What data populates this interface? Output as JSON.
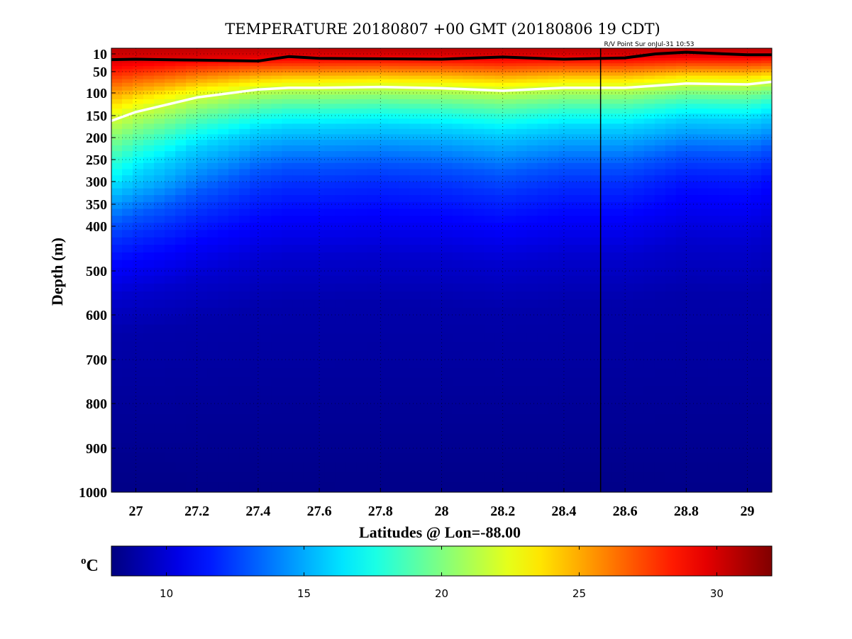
{
  "chart_data": {
    "type": "heatmap",
    "title": "TEMPERATURE 20180807 +00 GMT (20180806 19 CDT)",
    "annotation": "R/V Point Sur onJul-31 10:53",
    "xlabel": "Latitudes @ Lon=-88.00",
    "ylabel": "Depth (m)",
    "xlim": [
      26.92,
      29.08
    ],
    "ylim": [
      0,
      1000
    ],
    "y_scale": "piecewise (upper 0-400 m expanded)",
    "grid": "dotted",
    "x_ticks": [
      27,
      27.2,
      27.4,
      27.6,
      27.8,
      28,
      28.2,
      28.4,
      28.6,
      28.8,
      29
    ],
    "x_tick_labels": [
      "27",
      "27.2",
      "27.4",
      "27.6",
      "27.8",
      "28",
      "28.2",
      "28.4",
      "28.6",
      "28.8",
      "29"
    ],
    "y_ticks": [
      10,
      50,
      100,
      150,
      200,
      250,
      300,
      350,
      400,
      500,
      600,
      700,
      800,
      900,
      1000
    ],
    "y_tick_labels": [
      "10",
      "50",
      "100",
      "150",
      "200",
      "250",
      "300",
      "350",
      "400",
      "500",
      "600",
      "700",
      "800",
      "900",
      "1000"
    ],
    "colorbar": {
      "label": "oC",
      "label_main": "o",
      "label_unit": "C",
      "range": [
        8,
        32
      ],
      "ticks": [
        10,
        15,
        20,
        25,
        30
      ],
      "tick_labels": [
        "10",
        "15",
        "20",
        "25",
        "30"
      ],
      "colormap": "jet"
    },
    "isotherms": [
      {
        "temperature_c": 28,
        "color": "#000000",
        "latitudes": [
          26.92,
          27.0,
          27.2,
          27.4,
          27.5,
          27.6,
          27.8,
          28.0,
          28.2,
          28.4,
          28.6,
          28.7,
          28.8,
          29.0,
          29.08
        ],
        "depths_m": [
          23,
          22,
          24,
          26,
          16,
          20,
          21,
          22,
          17,
          22,
          19,
          10,
          7,
          12,
          12
        ]
      },
      {
        "temperature_c": 22,
        "color": "#ffffff",
        "latitudes": [
          26.92,
          27.0,
          27.2,
          27.4,
          27.5,
          27.6,
          27.8,
          28.0,
          28.2,
          28.4,
          28.6,
          28.8,
          29.0,
          29.08
        ],
        "depths_m": [
          162,
          142,
          110,
          92,
          88,
          88,
          86,
          89,
          95,
          88,
          88,
          78,
          80,
          74
        ]
      }
    ],
    "section_marker": {
      "latitude": 28.52,
      "color": "#000000"
    },
    "temperature_profile": {
      "depths_m": [
        0,
        20,
        40,
        60,
        80,
        100,
        130,
        160,
        200,
        250,
        300,
        350,
        400,
        450,
        500,
        600,
        1000
      ],
      "temperature_c": [
        30.5,
        29.5,
        27.5,
        25.5,
        23.5,
        21.8,
        19.8,
        18.0,
        16.0,
        14.5,
        13.0,
        12.0,
        11.2,
        10.5,
        9.8,
        9.0,
        8.2
      ]
    }
  }
}
